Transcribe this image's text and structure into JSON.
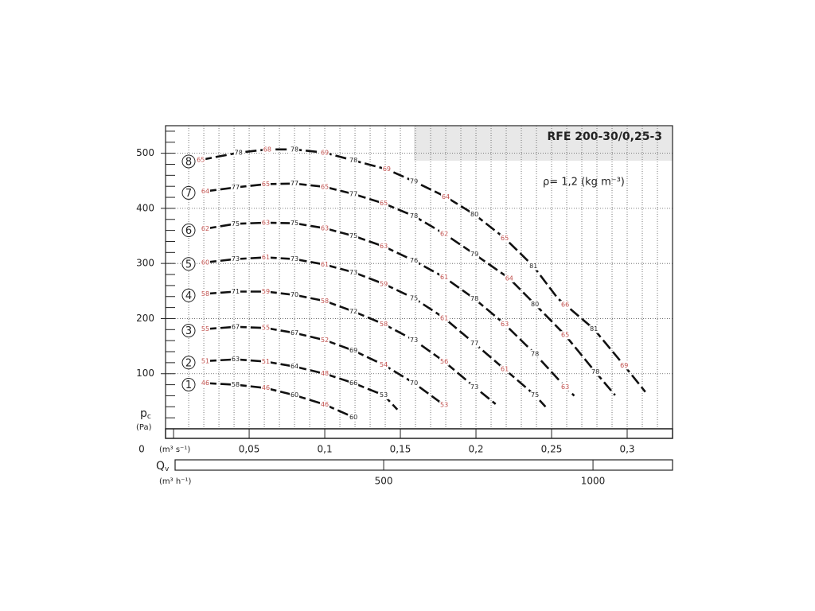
{
  "chart_data": {
    "type": "line",
    "title": "RFE 200-30/0,25-3",
    "annotation": "ρ= 1,2 (kg m⁻³)",
    "ylabel": {
      "main": "p",
      "sub": "c"
    },
    "yunit": "(Pa)",
    "xunit": "(m³ s⁻¹)",
    "x2label": {
      "main": "Q",
      "sub": "v"
    },
    "x2unit": "(m³ h⁻¹)",
    "xlim": [
      -0.0053,
      0.33
    ],
    "ylim": [
      0,
      550
    ],
    "x2lim": [
      -21,
      1190
    ],
    "xticks": [
      0,
      {
        "value": 0.05,
        "label": "0,05"
      },
      {
        "value": 0.1,
        "label": "0,1"
      },
      {
        "value": 0.15,
        "label": "0,15"
      },
      {
        "value": 0.2,
        "label": "0,2"
      },
      {
        "value": 0.25,
        "label": "0,25"
      },
      {
        "value": 0.3,
        "label": "0,3"
      }
    ],
    "xminor": [
      0.01,
      0.02,
      0.03,
      0.04,
      0.05,
      0.06,
      0.07,
      0.08,
      0.09,
      0.1,
      0.11,
      0.12,
      0.13,
      0.14,
      0.15,
      0.16,
      0.17,
      0.18,
      0.19,
      0.2,
      0.21,
      0.22,
      0.23,
      0.24,
      0.25,
      0.26,
      0.27,
      0.28,
      0.29,
      0.3,
      0.31,
      0.32
    ],
    "yticks": [
      100,
      200,
      300,
      400,
      500
    ],
    "yminor": [
      20,
      40,
      60,
      80,
      120,
      140,
      160,
      180,
      220,
      240,
      260,
      280,
      320,
      340,
      360,
      380,
      420,
      440,
      460,
      480,
      520,
      540
    ],
    "x2ticks": [
      500,
      1000
    ],
    "grid": true,
    "color": "#111111",
    "label_colors": [
      "#c0504d",
      "#222222"
    ],
    "series": [
      {
        "name": "1",
        "x": [
          0.021,
          0.041,
          0.061,
          0.08,
          0.1,
          0.119
        ],
        "values": [
          83,
          80,
          74,
          61,
          44,
          21
        ],
        "labels": [
          "46",
          "58",
          "46",
          "60",
          "46",
          "60"
        ],
        "label_x": [
          0.021,
          0.041,
          0.061,
          0.08,
          0.1,
          0.119
        ]
      },
      {
        "name": "2",
        "x": [
          0.021,
          0.041,
          0.061,
          0.08,
          0.1,
          0.119,
          0.139,
          0.148
        ],
        "values": [
          123,
          126,
          122,
          113,
          100,
          83,
          61,
          35
        ],
        "labels": [
          "51",
          "63",
          "51",
          "64",
          "48",
          "66",
          "50",
          "53"
        ],
        "label_x": [
          0.021,
          0.041,
          0.061,
          0.08,
          0.1,
          0.119,
          0.139,
          0.139
        ]
      },
      {
        "name": "3",
        "x": [
          0.021,
          0.041,
          0.061,
          0.08,
          0.1,
          0.119,
          0.139,
          0.159,
          0.179
        ],
        "values": [
          181,
          185,
          183,
          174,
          161,
          142,
          116,
          83,
          43
        ],
        "labels": [
          "55",
          "67",
          "55",
          "67",
          "52",
          "69",
          "54",
          "70",
          "53"
        ],
        "label_x": [
          0.021,
          0.041,
          0.061,
          0.08,
          0.1,
          0.119,
          0.139,
          0.159,
          0.179
        ]
      },
      {
        "name": "4",
        "x": [
          0.021,
          0.041,
          0.061,
          0.08,
          0.1,
          0.119,
          0.139,
          0.159,
          0.179,
          0.199,
          0.213
        ],
        "values": [
          245,
          249,
          249,
          243,
          232,
          213,
          190,
          161,
          122,
          76,
          45
        ],
        "labels": [
          "58",
          "71",
          "59",
          "70",
          "58",
          "72",
          "58",
          "73",
          "58",
          "73",
          "56"
        ],
        "label_x": [
          0.021,
          0.041,
          0.061,
          0.08,
          0.1,
          0.119,
          0.139,
          0.159,
          0.179,
          0.199,
          0.179
        ]
      },
      {
        "name": "5",
        "x": [
          0.021,
          0.041,
          0.061,
          0.08,
          0.1,
          0.119,
          0.139,
          0.159,
          0.179,
          0.199,
          0.219,
          0.239,
          0.246
        ],
        "values": [
          302,
          308,
          311,
          308,
          298,
          284,
          263,
          237,
          201,
          155,
          108,
          61,
          40
        ],
        "labels": [
          "60",
          "73",
          "61",
          "73",
          "61",
          "73",
          "59",
          "75",
          "61",
          "77",
          "61",
          "75"
        ],
        "label_x": [
          0.021,
          0.041,
          0.061,
          0.08,
          0.1,
          0.119,
          0.139,
          0.159,
          0.179,
          0.199,
          0.219,
          0.239
        ]
      },
      {
        "name": "6",
        "x": [
          0.021,
          0.041,
          0.061,
          0.08,
          0.1,
          0.119,
          0.139,
          0.159,
          0.179,
          0.199,
          0.219,
          0.239,
          0.259,
          0.265
        ],
        "values": [
          363,
          372,
          374,
          373,
          364,
          350,
          331,
          305,
          275,
          236,
          190,
          136,
          76,
          60
        ],
        "labels": [
          "62",
          "75",
          "63",
          "75",
          "63",
          "75",
          "63",
          "76",
          "61",
          "78",
          "63",
          "78",
          "63"
        ],
        "label_x": [
          0.021,
          0.041,
          0.061,
          0.08,
          0.1,
          0.119,
          0.139,
          0.159,
          0.179,
          0.199,
          0.219,
          0.239,
          0.259
        ]
      },
      {
        "name": "7",
        "x": [
          0.021,
          0.041,
          0.061,
          0.08,
          0.1,
          0.119,
          0.139,
          0.159,
          0.179,
          0.199,
          0.222,
          0.239,
          0.259,
          0.279,
          0.292
        ],
        "values": [
          431,
          438,
          444,
          445,
          439,
          426,
          409,
          386,
          354,
          317,
          273,
          226,
          170,
          103,
          61
        ],
        "labels": [
          "64",
          "77",
          "65",
          "77",
          "65",
          "77",
          "65",
          "78",
          "62",
          "79",
          "64",
          "80",
          "65",
          "78"
        ],
        "label_x": [
          0.021,
          0.041,
          0.061,
          0.08,
          0.1,
          0.119,
          0.139,
          0.159,
          0.179,
          0.199,
          0.222,
          0.239,
          0.259,
          0.279
        ]
      },
      {
        "name": "8",
        "x": [
          0.018,
          0.043,
          0.062,
          0.08,
          0.1,
          0.119,
          0.141,
          0.159,
          0.18,
          0.199,
          0.219,
          0.238,
          0.254,
          0.278,
          0.298,
          0.312
        ],
        "values": [
          488,
          501,
          507,
          507,
          501,
          487,
          471,
          449,
          421,
          389,
          346,
          295,
          237,
          181,
          115,
          67
        ],
        "labels": [
          "65",
          "78",
          "68",
          "78",
          "69",
          "78",
          "69",
          "79",
          "64",
          "80",
          "65",
          "81",
          "66",
          "81",
          "69"
        ],
        "label_x": [
          0.018,
          0.043,
          0.062,
          0.08,
          0.1,
          0.119,
          0.141,
          0.159,
          0.18,
          0.199,
          0.219,
          0.238,
          0.259,
          0.278,
          0.298
        ]
      }
    ]
  }
}
